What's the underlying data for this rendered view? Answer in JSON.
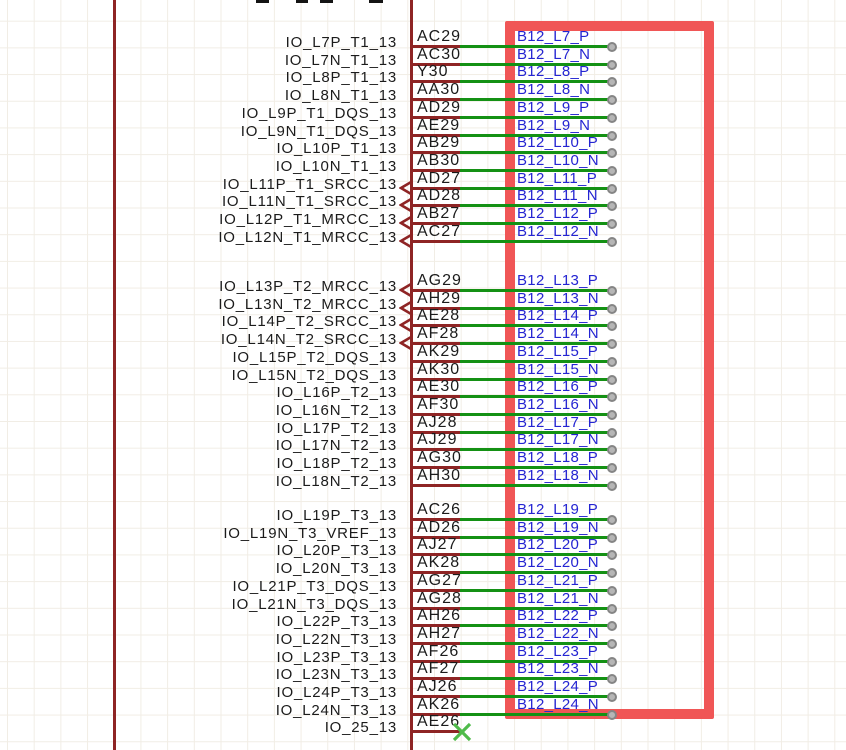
{
  "app": {
    "view": "schematic-editor-canvas"
  },
  "colors": {
    "background": "#ffffff",
    "grid_line": "#f1ede5",
    "symbol_outline": "#8e2424",
    "pin_text": "#1b1b1b",
    "wire_green": "#149114",
    "net_label_blue": "#2424d2",
    "highlight_red": "#f05656",
    "no_connect_green": "#4fbb4a",
    "junction_fill": "#b6b6b6",
    "junction_ring": "#858585"
  },
  "highlight_box": {
    "present": true,
    "shape": "rectangle"
  },
  "artifacts": {
    "top_clipped_text_marks": 4
  },
  "pin_groups": [
    {
      "rows": [
        {
          "name": "IO_L7P_T1_13",
          "number": "AC29",
          "net": "B12_L7_P",
          "clock": false,
          "no_connect": false
        },
        {
          "name": "IO_L7N_T1_13",
          "number": "AC30",
          "net": "B12_L7_N",
          "clock": false,
          "no_connect": false
        },
        {
          "name": "IO_L8P_T1_13",
          "number": "Y30",
          "net": "B12_L8_P",
          "clock": false,
          "no_connect": false
        },
        {
          "name": "IO_L8N_T1_13",
          "number": "AA30",
          "net": "B12_L8_N",
          "clock": false,
          "no_connect": false
        },
        {
          "name": "IO_L9P_T1_DQS_13",
          "number": "AD29",
          "net": "B12_L9_P",
          "clock": false,
          "no_connect": false
        },
        {
          "name": "IO_L9N_T1_DQS_13",
          "number": "AE29",
          "net": "B12_L9_N",
          "clock": false,
          "no_connect": false
        },
        {
          "name": "IO_L10P_T1_13",
          "number": "AB29",
          "net": "B12_L10_P",
          "clock": false,
          "no_connect": false
        },
        {
          "name": "IO_L10N_T1_13",
          "number": "AB30",
          "net": "B12_L10_N",
          "clock": false,
          "no_connect": false
        },
        {
          "name": "IO_L11P_T1_SRCC_13",
          "number": "AD27",
          "net": "B12_L11_P",
          "clock": true,
          "no_connect": false
        },
        {
          "name": "IO_L11N_T1_SRCC_13",
          "number": "AD28",
          "net": "B12_L11_N",
          "clock": true,
          "no_connect": false
        },
        {
          "name": "IO_L12P_T1_MRCC_13",
          "number": "AB27",
          "net": "B12_L12_P",
          "clock": true,
          "no_connect": false
        },
        {
          "name": "IO_L12N_T1_MRCC_13",
          "number": "AC27",
          "net": "B12_L12_N",
          "clock": true,
          "no_connect": false
        }
      ]
    },
    {
      "rows": [
        {
          "name": "IO_L13P_T2_MRCC_13",
          "number": "AG29",
          "net": "B12_L13_P",
          "clock": true,
          "no_connect": false
        },
        {
          "name": "IO_L13N_T2_MRCC_13",
          "number": "AH29",
          "net": "B12_L13_N",
          "clock": true,
          "no_connect": false
        },
        {
          "name": "IO_L14P_T2_SRCC_13",
          "number": "AE28",
          "net": "B12_L14_P",
          "clock": true,
          "no_connect": false
        },
        {
          "name": "IO_L14N_T2_SRCC_13",
          "number": "AF28",
          "net": "B12_L14_N",
          "clock": true,
          "no_connect": false
        },
        {
          "name": "IO_L15P_T2_DQS_13",
          "number": "AK29",
          "net": "B12_L15_P",
          "clock": false,
          "no_connect": false
        },
        {
          "name": "IO_L15N_T2_DQS_13",
          "number": "AK30",
          "net": "B12_L15_N",
          "clock": false,
          "no_connect": false
        },
        {
          "name": "IO_L16P_T2_13",
          "number": "AE30",
          "net": "B12_L16_P",
          "clock": false,
          "no_connect": false
        },
        {
          "name": "IO_L16N_T2_13",
          "number": "AF30",
          "net": "B12_L16_N",
          "clock": false,
          "no_connect": false
        },
        {
          "name": "IO_L17P_T2_13",
          "number": "AJ28",
          "net": "B12_L17_P",
          "clock": false,
          "no_connect": false
        },
        {
          "name": "IO_L17N_T2_13",
          "number": "AJ29",
          "net": "B12_L17_N",
          "clock": false,
          "no_connect": false
        },
        {
          "name": "IO_L18P_T2_13",
          "number": "AG30",
          "net": "B12_L18_P",
          "clock": false,
          "no_connect": false
        },
        {
          "name": "IO_L18N_T2_13",
          "number": "AH30",
          "net": "B12_L18_N",
          "clock": false,
          "no_connect": false
        }
      ]
    },
    {
      "rows": [
        {
          "name": "IO_L19P_T3_13",
          "number": "AC26",
          "net": "B12_L19_P",
          "clock": false,
          "no_connect": false
        },
        {
          "name": "IO_L19N_T3_VREF_13",
          "number": "AD26",
          "net": "B12_L19_N",
          "clock": false,
          "no_connect": false
        },
        {
          "name": "IO_L20P_T3_13",
          "number": "AJ27",
          "net": "B12_L20_P",
          "clock": false,
          "no_connect": false
        },
        {
          "name": "IO_L20N_T3_13",
          "number": "AK28",
          "net": "B12_L20_N",
          "clock": false,
          "no_connect": false
        },
        {
          "name": "IO_L21P_T3_DQS_13",
          "number": "AG27",
          "net": "B12_L21_P",
          "clock": false,
          "no_connect": false
        },
        {
          "name": "IO_L21N_T3_DQS_13",
          "number": "AG28",
          "net": "B12_L21_N",
          "clock": false,
          "no_connect": false
        },
        {
          "name": "IO_L22P_T3_13",
          "number": "AH26",
          "net": "B12_L22_P",
          "clock": false,
          "no_connect": false
        },
        {
          "name": "IO_L22N_T3_13",
          "number": "AH27",
          "net": "B12_L22_N",
          "clock": false,
          "no_connect": false
        },
        {
          "name": "IO_L23P_T3_13",
          "number": "AF26",
          "net": "B12_L23_P",
          "clock": false,
          "no_connect": false
        },
        {
          "name": "IO_L23N_T3_13",
          "number": "AF27",
          "net": "B12_L23_N",
          "clock": false,
          "no_connect": false
        },
        {
          "name": "IO_L24P_T3_13",
          "number": "AJ26",
          "net": "B12_L24_P",
          "clock": false,
          "no_connect": false
        },
        {
          "name": "IO_L24N_T3_13",
          "number": "AK26",
          "net": "B12_L24_N",
          "clock": false,
          "no_connect": false
        },
        {
          "name": "IO_25_13",
          "number": "AE26",
          "net": null,
          "clock": false,
          "no_connect": true
        }
      ]
    }
  ]
}
